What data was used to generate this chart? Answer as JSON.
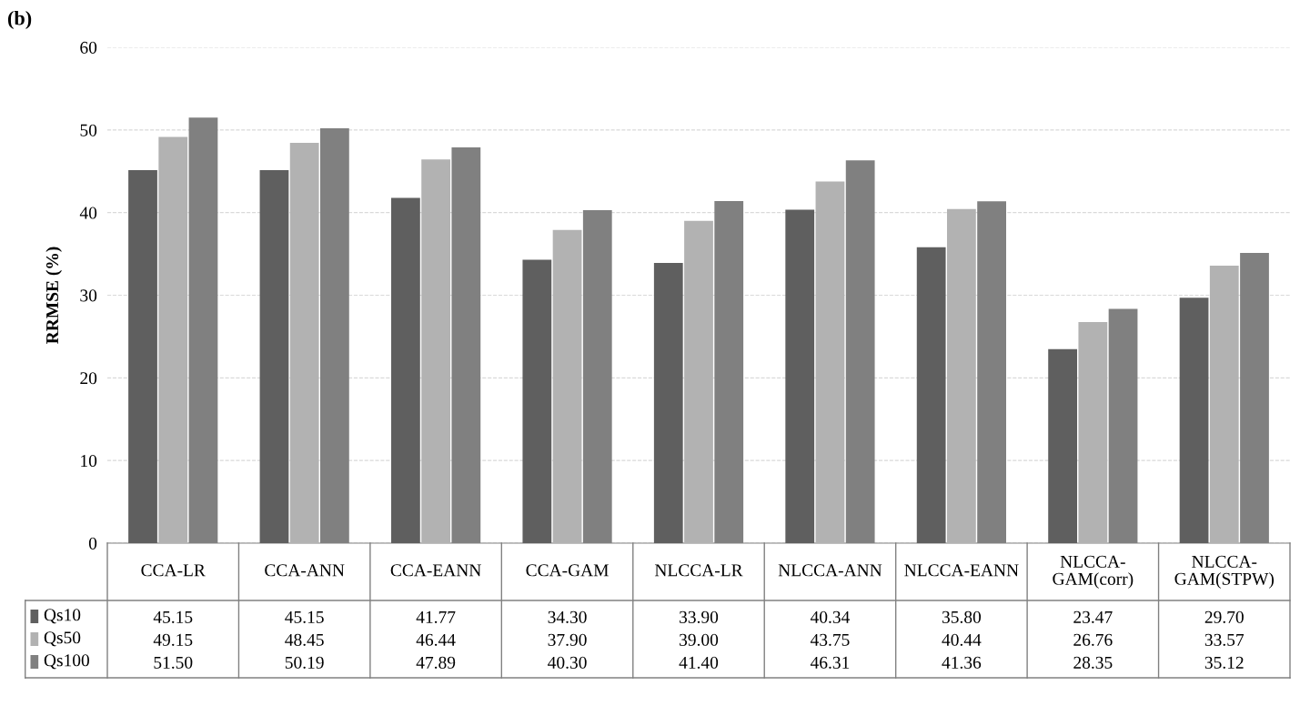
{
  "chart_data": {
    "type": "bar",
    "title": "(b)",
    "ylabel": "RRMSE (%)",
    "categories": [
      "CCA-LR",
      "CCA-ANN",
      "CCA-EANN",
      "CCA-GAM",
      "NLCCA-LR",
      "NLCCA-ANN",
      "NLCCA-EANN",
      "NLCCA-GAM(corr)",
      "NLCCA-GAM(STPW)"
    ],
    "series": [
      {
        "name": "Qs10",
        "color": "#5f5f5f",
        "values": [
          45.15,
          45.15,
          41.77,
          34.3,
          33.9,
          40.34,
          35.8,
          23.47,
          29.7
        ],
        "value_labels": [
          "45.15",
          "45.15",
          "41.77",
          "34.30",
          "33.90",
          "40.34",
          "35.80",
          "23.47",
          "29.70"
        ]
      },
      {
        "name": "Qs50",
        "color": "#b2b2b2",
        "values": [
          49.15,
          48.45,
          46.44,
          37.9,
          39.0,
          43.75,
          40.44,
          26.76,
          33.57
        ],
        "value_labels": [
          "49.15",
          "48.45",
          "46.44",
          "37.90",
          "39.00",
          "43.75",
          "40.44",
          "26.76",
          "33.57"
        ]
      },
      {
        "name": "Qs100",
        "color": "#808080",
        "values": [
          51.5,
          50.19,
          47.89,
          40.3,
          41.4,
          46.31,
          41.36,
          28.35,
          35.12
        ],
        "value_labels": [
          "51.50",
          "50.19",
          "47.89",
          "40.30",
          "41.40",
          "46.31",
          "41.36",
          "28.35",
          "35.12"
        ]
      }
    ],
    "ylim": [
      0,
      60
    ],
    "yticks": [
      0,
      10,
      20,
      30,
      40,
      50,
      60
    ],
    "grid": "y",
    "legend": "bottom left"
  }
}
